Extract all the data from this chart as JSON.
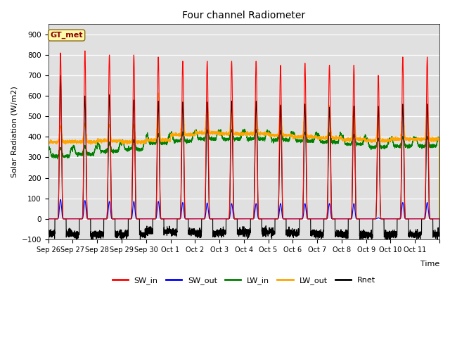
{
  "title": "Four channel Radiometer",
  "xlabel": "Time",
  "ylabel": "Solar Radiation (W/m2)",
  "ylim": [
    -100,
    950
  ],
  "yticks": [
    -100,
    0,
    100,
    200,
    300,
    400,
    500,
    600,
    700,
    800,
    900
  ],
  "annotation_text": "GT_met",
  "annotation_color": "#8B0000",
  "annotation_bg": "#FFFAAA",
  "bg_color": "#E0E0E0",
  "legend_entries": [
    "SW_in",
    "SW_out",
    "LW_in",
    "LW_out",
    "Rnet"
  ],
  "legend_colors": [
    "red",
    "blue",
    "green",
    "orange",
    "black"
  ],
  "x_tick_labels": [
    "Sep 26",
    "Sep 27",
    "Sep 28",
    "Sep 29",
    "Sep 30",
    "Oct 1",
    "Oct 2",
    "Oct 3",
    "Oct 4",
    "Oct 5",
    "Oct 6",
    "Oct 7",
    "Oct 8",
    "Oct 9",
    "Oct 10",
    "Oct 11"
  ],
  "n_days": 16,
  "SW_in_peak": [
    810,
    820,
    800,
    800,
    790,
    770,
    770,
    770,
    770,
    750,
    760,
    750,
    750,
    700,
    790,
    790
  ],
  "SW_out_peak": [
    95,
    90,
    85,
    85,
    85,
    80,
    78,
    75,
    75,
    75,
    75,
    75,
    75,
    5,
    80,
    80
  ],
  "LW_in_base": [
    305,
    315,
    330,
    340,
    370,
    380,
    390,
    390,
    390,
    385,
    380,
    375,
    365,
    350,
    355,
    355
  ],
  "LW_out_base": [
    375,
    375,
    380,
    375,
    385,
    410,
    420,
    415,
    415,
    408,
    400,
    395,
    388,
    382,
    388,
    388
  ],
  "LW_out_peak": [
    450,
    465,
    460,
    455,
    610,
    570,
    565,
    565,
    565,
    555,
    560,
    548,
    548,
    545,
    555,
    555
  ],
  "Rnet_peak": [
    700,
    600,
    605,
    580,
    575,
    570,
    570,
    575,
    575,
    555,
    560,
    545,
    550,
    550,
    560,
    560
  ],
  "Rnet_night": [
    -70,
    -80,
    -75,
    -75,
    -60,
    -65,
    -70,
    -65,
    -65,
    -65,
    -70,
    -75,
    -75,
    -80,
    -75,
    -75
  ]
}
